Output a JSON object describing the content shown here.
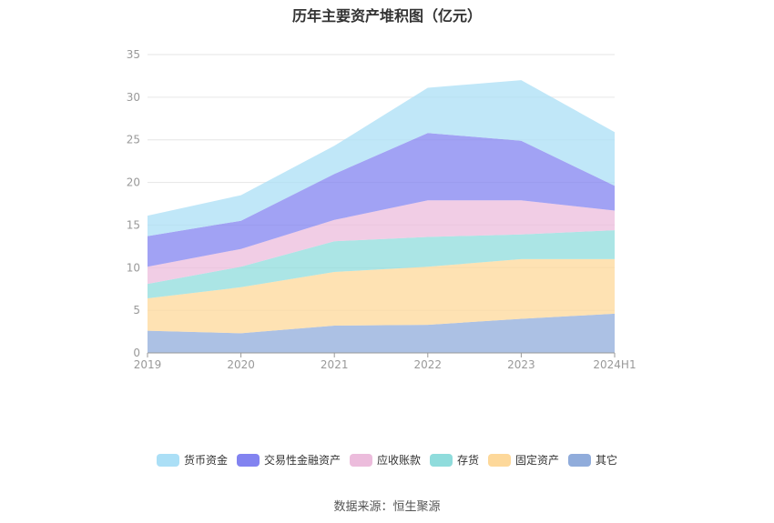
{
  "title": "历年主要资产堆积图（亿元）",
  "source": "数据来源：恒生聚源",
  "chart_data": {
    "type": "area",
    "stacked": true,
    "title": "历年主要资产堆积图（亿元）",
    "categories": [
      "2019",
      "2020",
      "2021",
      "2022",
      "2023",
      "2024H1"
    ],
    "ylim": [
      0,
      35
    ],
    "yticks": [
      0,
      5,
      10,
      15,
      20,
      25,
      30,
      35
    ],
    "grid": true,
    "legend_position": "bottom",
    "series": [
      {
        "name": "其它",
        "color": "#90acdb",
        "values": [
          2.6,
          2.3,
          3.2,
          3.3,
          4.0,
          4.6
        ]
      },
      {
        "name": "固定资产",
        "color": "#fdd89a",
        "values": [
          3.8,
          5.4,
          6.3,
          6.8,
          7.0,
          6.4
        ]
      },
      {
        "name": "存货",
        "color": "#8fdcdc",
        "values": [
          1.7,
          2.4,
          3.6,
          3.5,
          2.9,
          3.4
        ]
      },
      {
        "name": "应收账款",
        "color": "#ecbcdc",
        "values": [
          2.0,
          2.1,
          2.5,
          4.3,
          4.0,
          2.3
        ]
      },
      {
        "name": "交易性金融资产",
        "color": "#8283f0",
        "values": [
          3.6,
          3.3,
          5.4,
          7.9,
          7.0,
          2.9
        ]
      },
      {
        "name": "货币资金",
        "color": "#abdff6",
        "values": [
          2.4,
          3.0,
          3.3,
          5.3,
          7.1,
          6.3
        ]
      }
    ]
  },
  "legend": [
    {
      "label": "货币资金",
      "color": "#abdff6"
    },
    {
      "label": "交易性金融资产",
      "color": "#8283f0"
    },
    {
      "label": "应收账款",
      "color": "#ecbcdc"
    },
    {
      "label": "存货",
      "color": "#8fdcdc"
    },
    {
      "label": "固定资产",
      "color": "#fdd89a"
    },
    {
      "label": "其它",
      "color": "#90acdb"
    }
  ]
}
